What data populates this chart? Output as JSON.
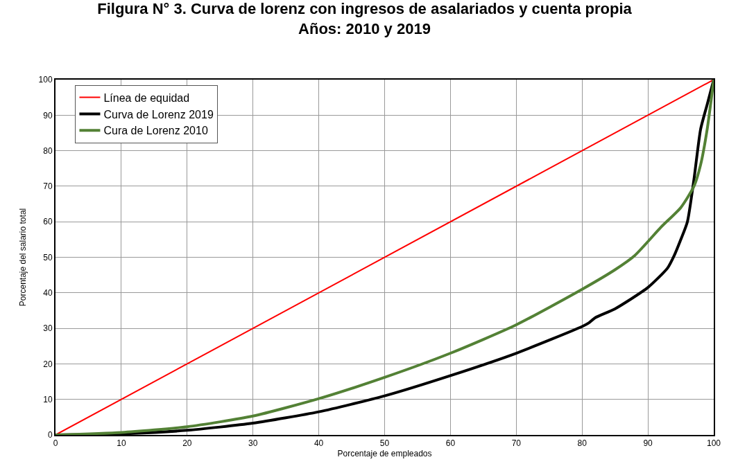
{
  "chart_data": {
    "type": "line",
    "title": "Filgura N° 3. Curva de lorenz con ingresos de asalariados y cuenta propia\nAños: 2010 y 2019",
    "xlabel": "Porcentaje de empleados",
    "ylabel": "Porcentaje del salario total",
    "xlim": [
      0,
      100
    ],
    "ylim": [
      0,
      100
    ],
    "xticks": [
      0,
      10,
      20,
      30,
      40,
      50,
      60,
      70,
      80,
      90,
      100
    ],
    "yticks": [
      0,
      10,
      20,
      30,
      40,
      50,
      60,
      70,
      80,
      90,
      100
    ],
    "grid": true,
    "legend": "top left",
    "marker": "none",
    "line_style": "solid",
    "series": [
      {
        "name": "Línea de equidad",
        "color": "#ff0000",
        "x": [
          0,
          100
        ],
        "values": [
          0,
          100
        ]
      },
      {
        "name": "Curva de Lorenz 2019",
        "color": "#000000",
        "x": [
          0,
          10,
          20,
          30,
          40,
          50,
          60,
          70,
          80,
          81,
          82,
          85,
          90,
          93,
          94,
          95,
          96,
          97,
          98,
          99,
          100
        ],
        "values": [
          0,
          0.3,
          1.3,
          3.3,
          6.5,
          11,
          16.7,
          23,
          30.5,
          31.5,
          33,
          35.5,
          41.5,
          47,
          50.5,
          55,
          60,
          72,
          86,
          93,
          100
        ]
      },
      {
        "name": "Cura de Lorenz 2010",
        "color": "#538135",
        "x": [
          0,
          10,
          20,
          30,
          40,
          50,
          60,
          70,
          80,
          85,
          88,
          92,
          95,
          97,
          98,
          99,
          100
        ],
        "values": [
          0,
          0.7,
          2.3,
          5.3,
          10.2,
          16.2,
          23,
          31,
          41,
          46.5,
          50.5,
          58.5,
          64,
          70,
          76,
          86,
          100
        ]
      }
    ]
  }
}
